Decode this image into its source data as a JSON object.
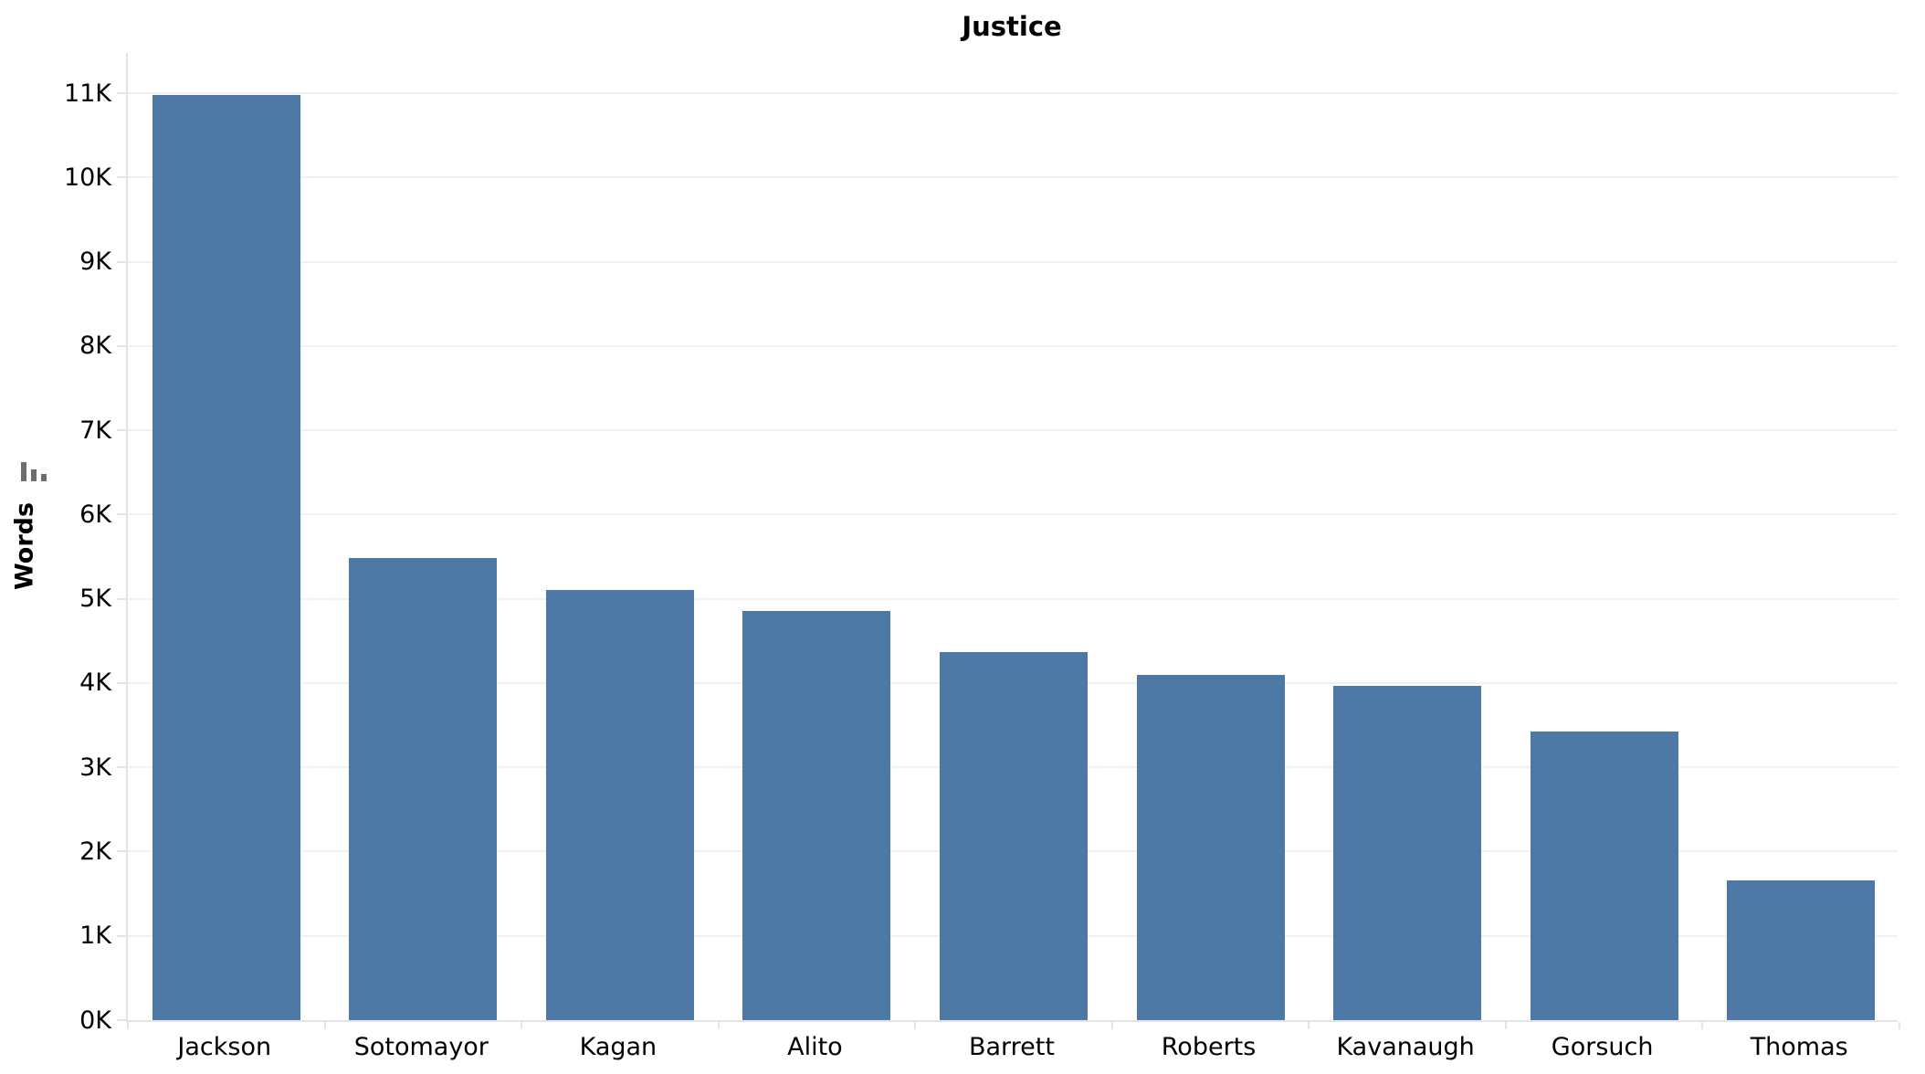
{
  "title": "Justice",
  "y_axis": {
    "label": "Words",
    "tick_labels": [
      "0K",
      "1K",
      "2K",
      "3K",
      "4K",
      "5K",
      "6K",
      "7K",
      "8K",
      "9K",
      "10K",
      "11K"
    ],
    "tick_values": [
      0,
      1000,
      2000,
      3000,
      4000,
      5000,
      6000,
      7000,
      8000,
      9000,
      10000,
      11000
    ],
    "sort_icon": "sort-descending-icon"
  },
  "chart_data": {
    "type": "bar",
    "title": "Justice",
    "xlabel": "Justice",
    "ylabel": "Words",
    "categories": [
      "Jackson",
      "Sotomayor",
      "Kagan",
      "Alito",
      "Barrett",
      "Roberts",
      "Kavanaugh",
      "Gorsuch",
      "Thomas"
    ],
    "values": [
      10980,
      5480,
      5100,
      4860,
      4370,
      4100,
      3970,
      3430,
      1660
    ],
    "ylim": [
      0,
      11500
    ],
    "bar_color": "#4e79a7",
    "grid": "horizontal",
    "sort_order": "descending",
    "legend": "none"
  }
}
